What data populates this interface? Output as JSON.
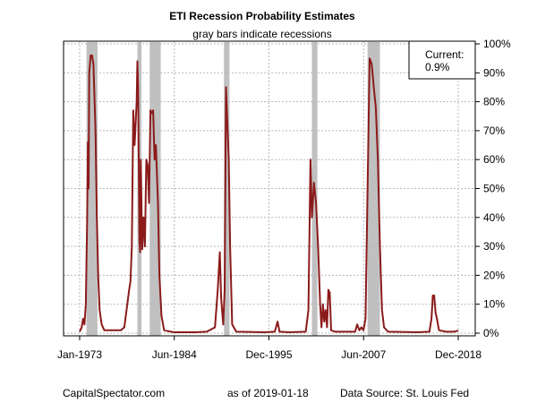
{
  "chart_data": {
    "type": "line",
    "title": "ETI Recession Probability Estimates",
    "subtitle": "gray bars indicate recessions",
    "xlabel": "",
    "ylabel": "",
    "x_ticks": [
      "Jan-1973",
      "Jun-1984",
      "Dec-1995",
      "Jun-2007",
      "Dec-2018"
    ],
    "y_ticks": [
      "0%",
      "10%",
      "20%",
      "30%",
      "40%",
      "50%",
      "60%",
      "70%",
      "80%",
      "90%",
      "100%"
    ],
    "ylim": [
      0,
      100
    ],
    "xlim": [
      "1973-01",
      "2018-12"
    ],
    "y_axis_side": "right",
    "grid": true,
    "recession_shading": [
      {
        "start": "1973-11",
        "end": "1975-03"
      },
      {
        "start": "1980-01",
        "end": "1980-07"
      },
      {
        "start": "1981-07",
        "end": "1982-11"
      },
      {
        "start": "1990-07",
        "end": "1991-03"
      },
      {
        "start": "2001-03",
        "end": "2001-11"
      },
      {
        "start": "2007-12",
        "end": "2009-06"
      }
    ],
    "series": [
      {
        "color": "#8b1a1a",
        "points": [
          [
            "1973-01",
            0.5
          ],
          [
            "1973-04",
            2
          ],
          [
            "1973-06",
            5
          ],
          [
            "1973-08",
            3
          ],
          [
            "1973-10",
            10
          ],
          [
            "1973-12",
            40
          ],
          [
            "1974-01",
            66
          ],
          [
            "1974-02",
            50
          ],
          [
            "1974-03",
            90
          ],
          [
            "1974-05",
            96
          ],
          [
            "1974-07",
            96
          ],
          [
            "1974-09",
            93
          ],
          [
            "1974-12",
            70
          ],
          [
            "1975-02",
            40
          ],
          [
            "1975-04",
            20
          ],
          [
            "1975-06",
            8
          ],
          [
            "1975-09",
            3
          ],
          [
            "1976-01",
            1
          ],
          [
            "1978-01",
            1
          ],
          [
            "1978-06",
            2
          ],
          [
            "1979-01",
            15
          ],
          [
            "1979-03",
            18
          ],
          [
            "1979-05",
            30
          ],
          [
            "1979-07",
            77
          ],
          [
            "1979-09",
            65
          ],
          [
            "1979-12",
            80
          ],
          [
            "1980-01",
            94
          ],
          [
            "1980-02",
            85
          ],
          [
            "1980-03",
            60
          ],
          [
            "1980-04",
            32
          ],
          [
            "1980-05",
            28
          ],
          [
            "1980-06",
            60
          ],
          [
            "1980-08",
            29
          ],
          [
            "1980-10",
            40
          ],
          [
            "1980-12",
            30
          ],
          [
            "1981-02",
            60
          ],
          [
            "1981-04",
            58
          ],
          [
            "1981-06",
            45
          ],
          [
            "1981-08",
            77
          ],
          [
            "1981-10",
            76
          ],
          [
            "1981-12",
            77
          ],
          [
            "1982-02",
            60
          ],
          [
            "1982-04",
            65
          ],
          [
            "1982-07",
            45
          ],
          [
            "1982-09",
            20
          ],
          [
            "1982-12",
            6
          ],
          [
            "1983-04",
            1
          ],
          [
            "1984-06",
            0.3
          ],
          [
            "1987-01",
            0.3
          ],
          [
            "1988-06",
            0.5
          ],
          [
            "1989-06",
            2
          ],
          [
            "1989-10",
            15
          ],
          [
            "1990-01",
            28
          ],
          [
            "1990-03",
            12
          ],
          [
            "1990-06",
            3
          ],
          [
            "1990-08",
            15
          ],
          [
            "1990-10",
            85
          ],
          [
            "1990-12",
            72
          ],
          [
            "1991-02",
            60
          ],
          [
            "1991-04",
            30
          ],
          [
            "1991-07",
            3
          ],
          [
            "1992-01",
            0.5
          ],
          [
            "1995-06",
            0.3
          ],
          [
            "1996-09",
            0.5
          ],
          [
            "1997-01",
            4
          ],
          [
            "1997-04",
            0.5
          ],
          [
            "1998-06",
            0.3
          ],
          [
            "2000-06",
            0.5
          ],
          [
            "2000-10",
            8
          ],
          [
            "2001-01",
            60
          ],
          [
            "2001-03",
            40
          ],
          [
            "2001-06",
            52
          ],
          [
            "2001-09",
            45
          ],
          [
            "2001-12",
            30
          ],
          [
            "2002-03",
            10
          ],
          [
            "2002-05",
            2
          ],
          [
            "2002-07",
            10
          ],
          [
            "2002-09",
            4
          ],
          [
            "2002-11",
            8
          ],
          [
            "2003-01",
            2
          ],
          [
            "2003-03",
            15
          ],
          [
            "2003-05",
            14
          ],
          [
            "2003-07",
            1
          ],
          [
            "2004-01",
            0.5
          ],
          [
            "2006-06",
            0.5
          ],
          [
            "2006-09",
            3
          ],
          [
            "2006-12",
            1
          ],
          [
            "2007-03",
            2
          ],
          [
            "2007-06",
            1
          ],
          [
            "2007-09",
            5
          ],
          [
            "2007-12",
            50
          ],
          [
            "2008-03",
            95
          ],
          [
            "2008-06",
            93
          ],
          [
            "2008-09",
            85
          ],
          [
            "2008-12",
            78
          ],
          [
            "2009-03",
            60
          ],
          [
            "2009-06",
            30
          ],
          [
            "2009-09",
            8
          ],
          [
            "2009-12",
            2
          ],
          [
            "2010-06",
            0.5
          ],
          [
            "2014-01",
            0.3
          ],
          [
            "2015-06",
            0.5
          ],
          [
            "2015-09",
            5
          ],
          [
            "2015-11",
            13
          ],
          [
            "2016-01",
            13
          ],
          [
            "2016-03",
            7
          ],
          [
            "2016-05",
            5
          ],
          [
            "2016-08",
            1
          ],
          [
            "2017-06",
            0.5
          ],
          [
            "2018-06",
            0.5
          ],
          [
            "2018-12",
            0.9
          ]
        ]
      }
    ]
  },
  "current_box": {
    "label": "Current:",
    "value": "0.9%"
  },
  "footer": {
    "left": "CapitalSpectator.com",
    "middle": "as of 2019-01-18",
    "right": "Data Source: St. Louis Fed"
  },
  "colors": {
    "line": "#8b1a1a",
    "recession": "#c0c0c0",
    "grid": "#b8b8b8",
    "axis": "#000000"
  }
}
